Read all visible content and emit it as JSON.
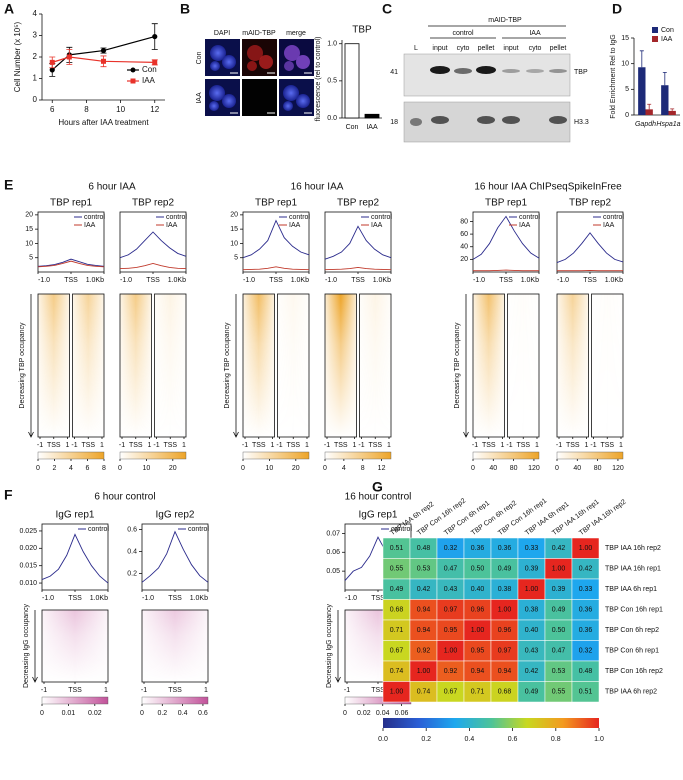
{
  "panel_labels": [
    "A",
    "B",
    "C",
    "D",
    "E",
    "F",
    "G"
  ],
  "micrographs": {
    "columns": [
      "DAPI",
      "mAID-TBP",
      "merge"
    ],
    "rows": [
      "Con",
      "IAA"
    ]
  },
  "blot": {
    "header": "mAID-TBP",
    "groups": [
      "control",
      "IAA"
    ],
    "lanes": [
      "L",
      "input",
      "cyto",
      "pellet",
      "input",
      "cyto",
      "pellet"
    ],
    "markers": [
      "41",
      "18"
    ],
    "bands": [
      "TBP",
      "H3.3"
    ]
  },
  "chart_data": [
    {
      "type": "line",
      "x": [
        6,
        7,
        9,
        12
      ],
      "xlim": [
        5.4,
        12.6
      ],
      "xticks": [
        6,
        8,
        10,
        12
      ],
      "ylim": [
        0,
        4
      ],
      "yticks": [
        0,
        1,
        2,
        3,
        4
      ],
      "xlabel": "Hours after IAA treatment",
      "ylabel": "Cell Number (x 10⁵)",
      "legend": "lower right",
      "series": [
        {
          "name": "Con",
          "color": "#000000",
          "marker": "circle",
          "values": [
            1.4,
            2.1,
            2.3,
            2.95
          ],
          "errors": [
            0.3,
            0.35,
            0.12,
            0.6
          ]
        },
        {
          "name": "IAA",
          "color": "#e8322a",
          "marker": "square",
          "values": [
            1.75,
            2.0,
            1.8,
            1.75
          ],
          "errors": [
            0.25,
            0.35,
            0.25,
            0.12
          ]
        }
      ]
    },
    {
      "type": "bar",
      "title": "TBP",
      "categories": [
        "Con",
        "IAA"
      ],
      "values": [
        1.0,
        0.05
      ],
      "colors": [
        "#ffffff",
        "#000000"
      ],
      "ylim": [
        0,
        1.05
      ],
      "yticks": [
        {
          "value": 0,
          "label": "0.0"
        },
        0.5,
        {
          "value": 1,
          "label": "1.0"
        }
      ],
      "ylabel": "fluorescence (rel to control)"
    },
    {
      "type": "grouped_bar",
      "categories": [
        "Gapdh",
        "Hspa1a"
      ],
      "ylim": [
        0,
        15
      ],
      "yticks": [
        0,
        5,
        10,
        15
      ],
      "ylabel": "Fold Enrichment Rel to IgG",
      "legend": "upper right",
      "series": [
        {
          "name": "Con",
          "color": "#1d2a78",
          "values": [
            9.3,
            5.8
          ],
          "errors": [
            3.2,
            2.5
          ]
        },
        {
          "name": "IAA",
          "color": "#a3262a",
          "values": [
            1.1,
            0.8
          ],
          "errors": [
            1.0,
            0.4
          ]
        }
      ]
    },
    {
      "type": "profile",
      "title": "6 hour IAA",
      "xlim": [
        -1,
        1
      ],
      "x": [
        -1,
        -0.75,
        -0.5,
        -0.25,
        0,
        0.25,
        0.5,
        0.75,
        1
      ],
      "xticks": [
        {
          "value": -1,
          "label": "-1.0"
        },
        {
          "value": 0,
          "label": "TSS"
        },
        {
          "value": 1,
          "label": "1.0Kb"
        }
      ],
      "ylim": [
        0,
        21
      ],
      "yticks": [
        5,
        10,
        15,
        20
      ],
      "heatmap_xticks": [
        -1,
        {
          "value": 0,
          "label": "TSS"
        },
        1
      ],
      "heatmap_ylabel": "Decreasing TBP occupancy",
      "heatmap_color": "#eda428",
      "legend": "upper right",
      "panels": [
        {
          "title": "TBP rep1",
          "colorbar_lim": [
            0,
            8
          ],
          "colorbar_ticks": [
            0,
            2,
            4,
            6,
            8
          ],
          "series": [
            {
              "name": "control",
              "color": "#2b2b8c",
              "values": [
                2,
                2.2,
                2.6,
                3.4,
                4.5,
                3.6,
                2.7,
                2.3,
                2.0
              ]
            },
            {
              "name": "IAA",
              "color": "#c0392b",
              "values": [
                1.8,
                2,
                2.3,
                3,
                3.8,
                3,
                2.3,
                2,
                1.8
              ]
            }
          ]
        },
        {
          "title": "TBP rep2",
          "colorbar_lim": [
            0,
            25
          ],
          "colorbar_ticks": [
            0,
            10,
            20
          ],
          "series": [
            {
              "name": "control",
              "color": "#2b2b8c",
              "values": [
                5,
                6,
                8,
                11,
                14,
                11,
                8.5,
                6.5,
                5.5
              ]
            },
            {
              "name": "IAA",
              "color": "#c0392b",
              "values": [
                1.2,
                1.3,
                1.6,
                2.2,
                3,
                2.2,
                1.6,
                1.3,
                1.2
              ]
            }
          ]
        }
      ]
    },
    {
      "type": "profile",
      "title": "16 hour IAA",
      "xlim": [
        -1,
        1
      ],
      "x": [
        -1,
        -0.75,
        -0.5,
        -0.25,
        0,
        0.25,
        0.5,
        0.75,
        1
      ],
      "xticks": [
        {
          "value": -1,
          "label": "-1.0"
        },
        {
          "value": 0,
          "label": "TSS"
        },
        {
          "value": 1,
          "label": "1.0Kb"
        }
      ],
      "ylim": [
        0,
        21
      ],
      "yticks": [
        5,
        10,
        15,
        20
      ],
      "heatmap_xticks": [
        -1,
        {
          "value": 0,
          "label": "TSS"
        },
        1
      ],
      "heatmap_ylabel": "Decreasing TBP occupancy",
      "heatmap_color": "#eda428",
      "legend": "upper right",
      "panels": [
        {
          "title": "TBP rep1",
          "colorbar_lim": [
            0,
            25
          ],
          "colorbar_ticks": [
            0,
            10,
            20
          ],
          "series": [
            {
              "name": "control",
              "color": "#2b2b8c",
              "values": [
                5,
                6,
                8,
                11,
                18,
                12,
                9,
                7,
                6
              ]
            },
            {
              "name": "IAA",
              "color": "#c0392b",
              "values": [
                0.8,
                0.9,
                1,
                1.3,
                1.8,
                1.3,
                1,
                0.9,
                0.8
              ]
            }
          ]
        },
        {
          "title": "TBP rep2",
          "colorbar_lim": [
            0,
            14
          ],
          "colorbar_ticks": [
            0,
            4,
            8,
            12
          ],
          "series": [
            {
              "name": "control",
              "color": "#2b2b8c",
              "values": [
                4.5,
                5.5,
                7,
                10,
                16,
                11,
                8,
                6,
                5
              ]
            },
            {
              "name": "IAA",
              "color": "#c0392b",
              "values": [
                0.8,
                0.9,
                1,
                1.2,
                1.6,
                1.2,
                1,
                0.9,
                0.8
              ]
            }
          ]
        }
      ]
    },
    {
      "type": "profile",
      "title": "16 hour IAA ChIPseqSpikeInFree",
      "xlim": [
        -1,
        1
      ],
      "x": [
        -1,
        -0.75,
        -0.5,
        -0.25,
        0,
        0.25,
        0.5,
        0.75,
        1
      ],
      "xticks": [
        {
          "value": -1,
          "label": "-1.0"
        },
        {
          "value": 0,
          "label": "TSS"
        },
        {
          "value": 1,
          "label": "1.0Kb"
        }
      ],
      "ylim": [
        0,
        95
      ],
      "yticks": [
        20,
        40,
        60,
        80
      ],
      "heatmap_xticks": [
        -1,
        {
          "value": 0,
          "label": "TSS"
        },
        1
      ],
      "heatmap_ylabel": "Decreasing TBP occupancy",
      "heatmap_color": "#eda428",
      "legend": "upper right",
      "panels": [
        {
          "title": "TBP rep1",
          "colorbar_lim": [
            0,
            130
          ],
          "colorbar_ticks": [
            0,
            40,
            80,
            120
          ],
          "series": [
            {
              "name": "control",
              "color": "#2b2b8c",
              "values": [
                20,
                28,
                45,
                70,
                88,
                65,
                45,
                30,
                22
              ]
            },
            {
              "name": "IAA",
              "color": "#c0392b",
              "values": [
                2,
                2,
                2,
                2.5,
                3,
                2.5,
                2,
                2,
                2
              ]
            }
          ]
        },
        {
          "title": "TBP rep2",
          "colorbar_lim": [
            0,
            130
          ],
          "colorbar_ticks": [
            0,
            40,
            80,
            120
          ],
          "series": [
            {
              "name": "control",
              "color": "#2b2b8c",
              "values": [
                15,
                20,
                30,
                45,
                62,
                45,
                30,
                20,
                16
              ]
            },
            {
              "name": "IAA",
              "color": "#c0392b",
              "values": [
                2,
                2,
                2,
                2,
                2.5,
                2,
                2,
                2,
                2
              ]
            }
          ]
        }
      ]
    },
    {
      "type": "profile",
      "title": "6 hour control",
      "xlim": [
        -1,
        1
      ],
      "x": [
        -1,
        -0.75,
        -0.5,
        -0.25,
        0,
        0.25,
        0.5,
        0.75,
        1
      ],
      "xticks": [
        {
          "value": -1,
          "label": "-1.0"
        },
        {
          "value": 0,
          "label": "TSS"
        },
        {
          "value": 1,
          "label": "1.0Kb"
        }
      ],
      "heatmap_xticks": [
        -1,
        {
          "value": 0,
          "label": "TSS"
        },
        1
      ],
      "heatmap_ylabel": "Decreasing IgG occupancy",
      "heatmap_color": "#c2529a",
      "legend": "upper right",
      "panels": [
        {
          "title": "IgG rep1",
          "ylim": [
            0.008,
            0.027
          ],
          "yticks": [
            {
              "value": 0.01,
              "label": "0.010"
            },
            {
              "value": 0.015,
              "label": "0.015"
            },
            {
              "value": 0.02,
              "label": "0.020"
            },
            {
              "value": 0.025,
              "label": "0.025"
            }
          ],
          "colorbar_lim": [
            0,
            0.025
          ],
          "colorbar_ticks": [
            0,
            0.01,
            0.02
          ],
          "series": [
            {
              "name": "control",
              "color": "#2b2b8c",
              "values": [
                0.011,
                0.012,
                0.014,
                0.018,
                0.024,
                0.019,
                0.015,
                0.012,
                0.01
              ]
            }
          ]
        },
        {
          "title": "IgG rep2",
          "ylim": [
            0.05,
            0.65
          ],
          "yticks": [
            0.2,
            0.4,
            0.6
          ],
          "colorbar_lim": [
            0,
            0.65
          ],
          "colorbar_ticks": [
            0,
            0.2,
            0.4,
            0.6
          ],
          "series": [
            {
              "name": "control",
              "color": "#2b2b8c",
              "values": [
                0.12,
                0.18,
                0.25,
                0.38,
                0.58,
                0.42,
                0.28,
                0.18,
                0.12
              ]
            }
          ]
        }
      ]
    },
    {
      "type": "profile",
      "title": "16 hour control",
      "xlim": [
        -1,
        1
      ],
      "x": [
        -1,
        -0.75,
        -0.5,
        -0.25,
        0,
        0.25,
        0.5,
        0.75,
        1
      ],
      "xticks": [
        {
          "value": -1,
          "label": "-1.0"
        },
        {
          "value": 0,
          "label": "TSS"
        },
        {
          "value": 1,
          "label": "1.0Kb"
        }
      ],
      "heatmap_xticks": [
        -1,
        {
          "value": 0,
          "label": "TSS"
        },
        1
      ],
      "heatmap_ylabel": "Decreasing IgG occupancy",
      "heatmap_color": "#c2529a",
      "legend": "upper right",
      "panels": [
        {
          "title": "IgG rep1",
          "ylim": [
            0.04,
            0.075
          ],
          "yticks": [
            0.05,
            0.06,
            0.07
          ],
          "colorbar_lim": [
            0,
            0.07
          ],
          "colorbar_ticks": [
            0,
            0.02,
            0.04,
            0.06
          ],
          "series": [
            {
              "name": "control",
              "color": "#2b2b8c",
              "values": [
                0.045,
                0.05,
                0.052,
                0.058,
                0.068,
                0.06,
                0.055,
                0.05,
                0.047
              ]
            }
          ]
        }
      ]
    },
    {
      "type": "heatmap",
      "x_categories": [
        "TBP IAA 6h rep2",
        "TBP Con 16h rep2",
        "TBP Con 6h rep1",
        "TBP Con 6h rep2",
        "TBP Con 16h rep1",
        "TBP IAA 6h rep1",
        "TBP IAA 16h rep1",
        "TBP IAA 16h rep2"
      ],
      "y_categories": [
        "TBP IAA 16h rep2",
        "TBP IAA 16h rep1",
        "TBP IAA 6h rep1",
        "TBP Con 16h rep1",
        "TBP Con 6h rep2",
        "TBP Con 6h rep1",
        "TBP Con 16h rep2",
        "TBP IAA 6h rep2"
      ],
      "values": [
        [
          0.51,
          0.48,
          0.32,
          0.36,
          0.36,
          0.33,
          0.42,
          1.0
        ],
        [
          0.55,
          0.53,
          0.47,
          0.5,
          0.49,
          0.39,
          1.0,
          0.42
        ],
        [
          0.49,
          0.42,
          0.43,
          0.4,
          0.38,
          1.0,
          0.39,
          0.33
        ],
        [
          0.68,
          0.94,
          0.97,
          0.96,
          1.0,
          0.38,
          0.49,
          0.36
        ],
        [
          0.71,
          0.94,
          0.95,
          1.0,
          0.96,
          0.4,
          0.5,
          0.36
        ],
        [
          0.67,
          0.92,
          1.0,
          0.95,
          0.97,
          0.43,
          0.47,
          0.32
        ],
        [
          0.74,
          1.0,
          0.92,
          0.94,
          0.94,
          0.42,
          0.53,
          0.48
        ],
        [
          1.0,
          0.74,
          0.67,
          0.71,
          0.68,
          0.49,
          0.55,
          0.51
        ]
      ],
      "value_labels": [
        [
          "0.51",
          "0.48",
          "0.32",
          "0.36",
          "0.36",
          "0.33",
          "0.42",
          "1.00"
        ],
        [
          "0.55",
          "0.53",
          "0.47",
          "0.50",
          "0.49",
          "0.39",
          "1.00",
          "0.42"
        ],
        [
          "0.49",
          "0.42",
          "0.43",
          "0.40",
          "0.38",
          "1.00",
          "0.39",
          "0.33"
        ],
        [
          "0.68",
          "0.94",
          "0.97",
          "0.96",
          "1.00",
          "0.38",
          "0.49",
          "0.36"
        ],
        [
          "0.71",
          "0.94",
          "0.95",
          "1.00",
          "0.96",
          "0.40",
          "0.50",
          "0.36"
        ],
        [
          "0.67",
          "0.92",
          "1.00",
          "0.95",
          "0.97",
          "0.43",
          "0.47",
          "0.32"
        ],
        [
          "0.74",
          "1.00",
          "0.92",
          "0.94",
          "0.94",
          "0.42",
          "0.53",
          "0.48"
        ],
        [
          "1.00",
          "0.74",
          "0.67",
          "0.71",
          "0.68",
          "0.49",
          "0.55",
          "0.51"
        ]
      ],
      "clim": [
        0,
        1
      ],
      "colorscale": [
        "#262f8a",
        "#2a5fd6",
        "#1ea8ee",
        "#4cc39a",
        "#c8d820",
        "#f39a20",
        "#e6261f"
      ],
      "colorbar_ticks": [
        {
          "value": 0,
          "label": "0.0"
        },
        0.2,
        0.4,
        0.6,
        0.8,
        {
          "value": 1,
          "label": "1.0"
        }
      ]
    }
  ]
}
